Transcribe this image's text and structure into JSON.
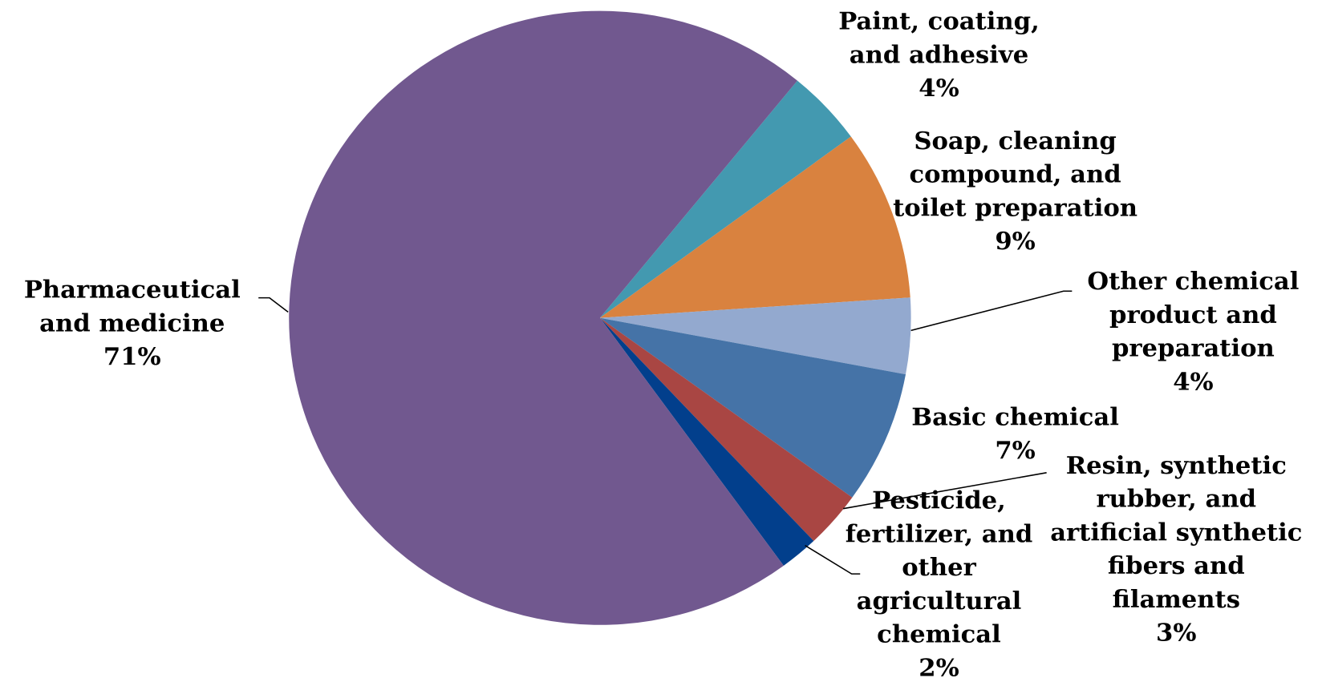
{
  "chart_data": {
    "type": "pie",
    "categories": [
      "Paint, coating, and adhesive",
      "Soap, cleaning compound, and toilet preparation",
      "Other chemical product and preparation",
      "Basic chemical",
      "Resin, synthetic rubber, and artificial synthetic fibers and filaments",
      "Pesticide, fertilizer, and other agricultural chemical",
      "Pharmaceutical and medicine"
    ],
    "values": [
      4,
      9,
      4,
      7,
      3,
      2,
      71
    ],
    "value_labels": [
      "4%",
      "9%",
      "4%",
      "7%",
      "3%",
      "2%",
      "71%"
    ],
    "colors": [
      "#4399b0",
      "#d9823f",
      "#93a9cf",
      "#4573a7",
      "#a94643",
      "#023f8c",
      "#71588f"
    ]
  }
}
